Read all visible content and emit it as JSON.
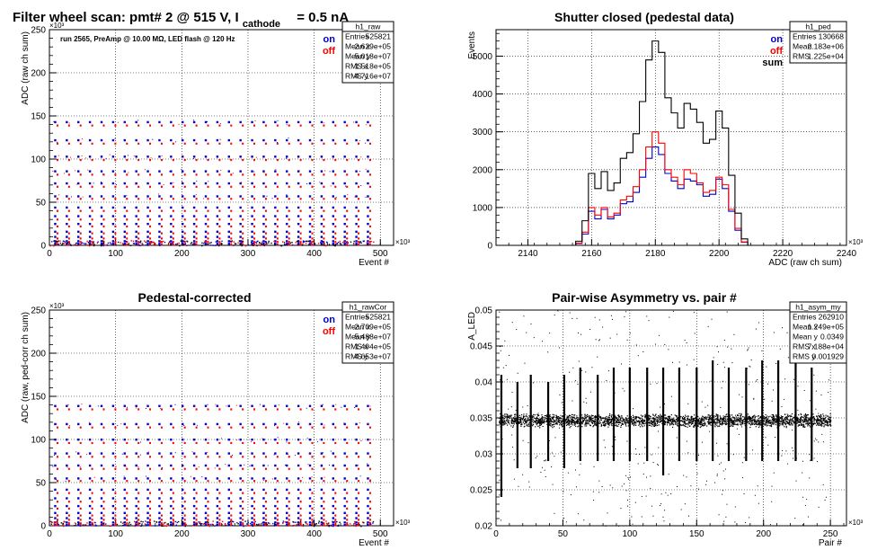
{
  "page_title": {
    "main": "Filter wheel scan: pmt#   2 @   515 V, I",
    "subscript": "cathode",
    "suffix": "= 0.5 nA"
  },
  "chart_data": [
    {
      "id": "raw",
      "type": "scatter",
      "title": "",
      "annotation": "run 2565, PreAmp @ 10.00 MΩ, LED flash @  120 Hz",
      "xlabel": "Event #",
      "ylabel": "ADC (raw ch sum)",
      "x_exponent": "×10³",
      "y_exponent": "×10³",
      "xlim": [
        0,
        520
      ],
      "ylim": [
        0,
        250
      ],
      "xticks": [
        0,
        100,
        200,
        300,
        400,
        500
      ],
      "yticks": [
        0,
        50,
        100,
        150,
        200,
        250
      ],
      "grid": true,
      "legend": [
        {
          "name": "on",
          "color": "#0000cc"
        },
        {
          "name": "off",
          "color": "#ff0000"
        }
      ],
      "legend_position": "top-right",
      "stats": {
        "name": "h1_raw",
        "rows": [
          {
            "label": "Entries",
            "value": "525821"
          },
          {
            "label": "Mean x",
            "value": "2.629e+05"
          },
          {
            "label": "Mean y",
            "value": "5.018e+07"
          },
          {
            "label": "RMS x",
            "value": "1.518e+05"
          },
          {
            "label": "RMS y",
            "value": "4.716e+07"
          }
        ]
      },
      "pattern": {
        "x_range": [
          0,
          490
        ],
        "n_columns": 28,
        "levels_on": [
          143,
          122,
          103,
          86,
          72,
          57,
          44,
          34,
          25,
          16,
          10,
          5,
          2
        ],
        "levels_off": [
          139,
          118,
          99,
          82,
          68,
          54,
          40,
          30,
          22,
          14,
          8,
          4,
          1
        ]
      }
    },
    {
      "id": "ped",
      "type": "line",
      "title": "Shutter closed (pedestal data)",
      "xlabel": "ADC (raw ch sum)",
      "ylabel": "Events",
      "x_exponent": "×10³",
      "xlim": [
        2130,
        2240
      ],
      "ylim": [
        0,
        5700
      ],
      "xticks": [
        2140,
        2160,
        2180,
        2200,
        2220,
        2240
      ],
      "yticks": [
        0,
        1000,
        2000,
        3000,
        4000,
        5000
      ],
      "grid": true,
      "legend": [
        {
          "name": "on",
          "color": "#0000cc"
        },
        {
          "name": "off",
          "color": "#ff0000"
        },
        {
          "name": "sum",
          "color": "#000000"
        }
      ],
      "legend_position": "top-right",
      "stats": {
        "name": "h1_ped",
        "rows": [
          {
            "label": "Entries",
            "value": "130668"
          },
          {
            "label": "Mean",
            "value": "2.183e+06"
          },
          {
            "label": "RMS",
            "value": "1.225e+04"
          }
        ]
      },
      "x": [
        2154,
        2156,
        2158,
        2160,
        2162,
        2164,
        2166,
        2168,
        2170,
        2172,
        2174,
        2176,
        2178,
        2180,
        2182,
        2184,
        2186,
        2188,
        2190,
        2192,
        2194,
        2196,
        2198,
        2200,
        2202,
        2204,
        2206,
        2208,
        2210
      ],
      "series": [
        {
          "name": "on",
          "color": "#0000cc",
          "values": [
            0,
            50,
            300,
            900,
            700,
            950,
            700,
            800,
            1100,
            1150,
            1400,
            1800,
            2300,
            2600,
            2400,
            1900,
            1700,
            1500,
            1750,
            1700,
            1600,
            1300,
            1350,
            1750,
            1500,
            900,
            400,
            80,
            0
          ]
        },
        {
          "name": "off",
          "color": "#ff0000",
          "values": [
            0,
            60,
            350,
            1000,
            800,
            1000,
            750,
            850,
            1200,
            1300,
            1550,
            2000,
            2600,
            3000,
            2700,
            2000,
            1800,
            1600,
            2000,
            1900,
            1650,
            1400,
            1450,
            1800,
            1600,
            950,
            450,
            90,
            0
          ]
        },
        {
          "name": "sum",
          "color": "#000000",
          "values": [
            0,
            110,
            650,
            1900,
            1500,
            1950,
            1450,
            1650,
            2300,
            2450,
            2950,
            3800,
            4900,
            5400,
            5100,
            3900,
            3500,
            3100,
            3750,
            3600,
            3250,
            2700,
            2800,
            3550,
            3100,
            1850,
            850,
            170,
            0
          ]
        }
      ]
    },
    {
      "id": "rawCor",
      "type": "scatter",
      "title": "Pedestal-corrected",
      "xlabel": "Event #",
      "ylabel": "ADC (raw, ped-corr ch sum)",
      "x_exponent": "×10³",
      "y_exponent": "×10³",
      "xlim": [
        0,
        520
      ],
      "ylim": [
        0,
        250
      ],
      "xticks": [
        0,
        100,
        200,
        300,
        400,
        500
      ],
      "yticks": [
        0,
        50,
        100,
        150,
        200,
        250
      ],
      "grid": true,
      "legend": [
        {
          "name": "on",
          "color": "#0000cc"
        },
        {
          "name": "off",
          "color": "#ff0000"
        }
      ],
      "legend_position": "top-right",
      "stats": {
        "name": "h1_rawCor",
        "rows": [
          {
            "label": "Entries",
            "value": "525821"
          },
          {
            "label": "Mean x",
            "value": "2.709e+05"
          },
          {
            "label": "Mean y",
            "value": "5.488e+07"
          },
          {
            "label": "RMS x",
            "value": "1.494e+05"
          },
          {
            "label": "RMS y",
            "value": "4.653e+07"
          }
        ]
      },
      "pattern": {
        "x_range": [
          0,
          490
        ],
        "n_columns": 28,
        "levels_on": [
          139,
          118,
          100,
          84,
          70,
          55,
          42,
          32,
          23,
          15,
          9,
          4,
          1
        ],
        "levels_off": [
          135,
          114,
          96,
          80,
          66,
          52,
          38,
          28,
          20,
          12,
          7,
          3,
          1
        ]
      }
    },
    {
      "id": "asym",
      "type": "scatter",
      "title": "Pair-wise Asymmetry vs. pair #",
      "xlabel": "Pair #",
      "ylabel": "A_LED",
      "x_exponent": "×10³",
      "xlim": [
        0,
        262
      ],
      "ylim": [
        0.02,
        0.05
      ],
      "xticks": [
        0,
        50,
        100,
        150,
        200,
        250
      ],
      "yticks": [
        0.02,
        0.025,
        0.03,
        0.035,
        0.04,
        0.045,
        0.05
      ],
      "grid": true,
      "stats": {
        "name": "h1_asym_my",
        "rows": [
          {
            "label": "Entries",
            "value": "262910"
          },
          {
            "label": "Mean x",
            "value": "1.249e+05"
          },
          {
            "label": "Mean y",
            "value": "0.0349"
          },
          {
            "label": "RMS x",
            "value": "7.188e+04"
          },
          {
            "label": "RMS y",
            "value": "0.001929"
          }
        ]
      },
      "band": {
        "x_range": [
          2,
          250
        ],
        "center": 0.0347,
        "half_width": 0.001
      },
      "spikes": {
        "x": [
          4,
          16,
          26,
          39,
          51,
          63,
          76,
          88,
          100,
          113,
          125,
          137,
          150,
          162,
          174,
          187,
          199,
          211,
          224,
          236
        ],
        "low": [
          0.024,
          0.028,
          0.028,
          0.029,
          0.028,
          0.029,
          0.029,
          0.029,
          0.029,
          0.029,
          0.027,
          0.029,
          0.029,
          0.029,
          0.029,
          0.029,
          0.029,
          0.029,
          0.029,
          0.029
        ],
        "high": [
          0.041,
          0.04,
          0.041,
          0.04,
          0.041,
          0.042,
          0.041,
          0.042,
          0.042,
          0.042,
          0.042,
          0.042,
          0.042,
          0.043,
          0.042,
          0.042,
          0.043,
          0.043,
          0.043,
          0.042
        ]
      }
    }
  ]
}
